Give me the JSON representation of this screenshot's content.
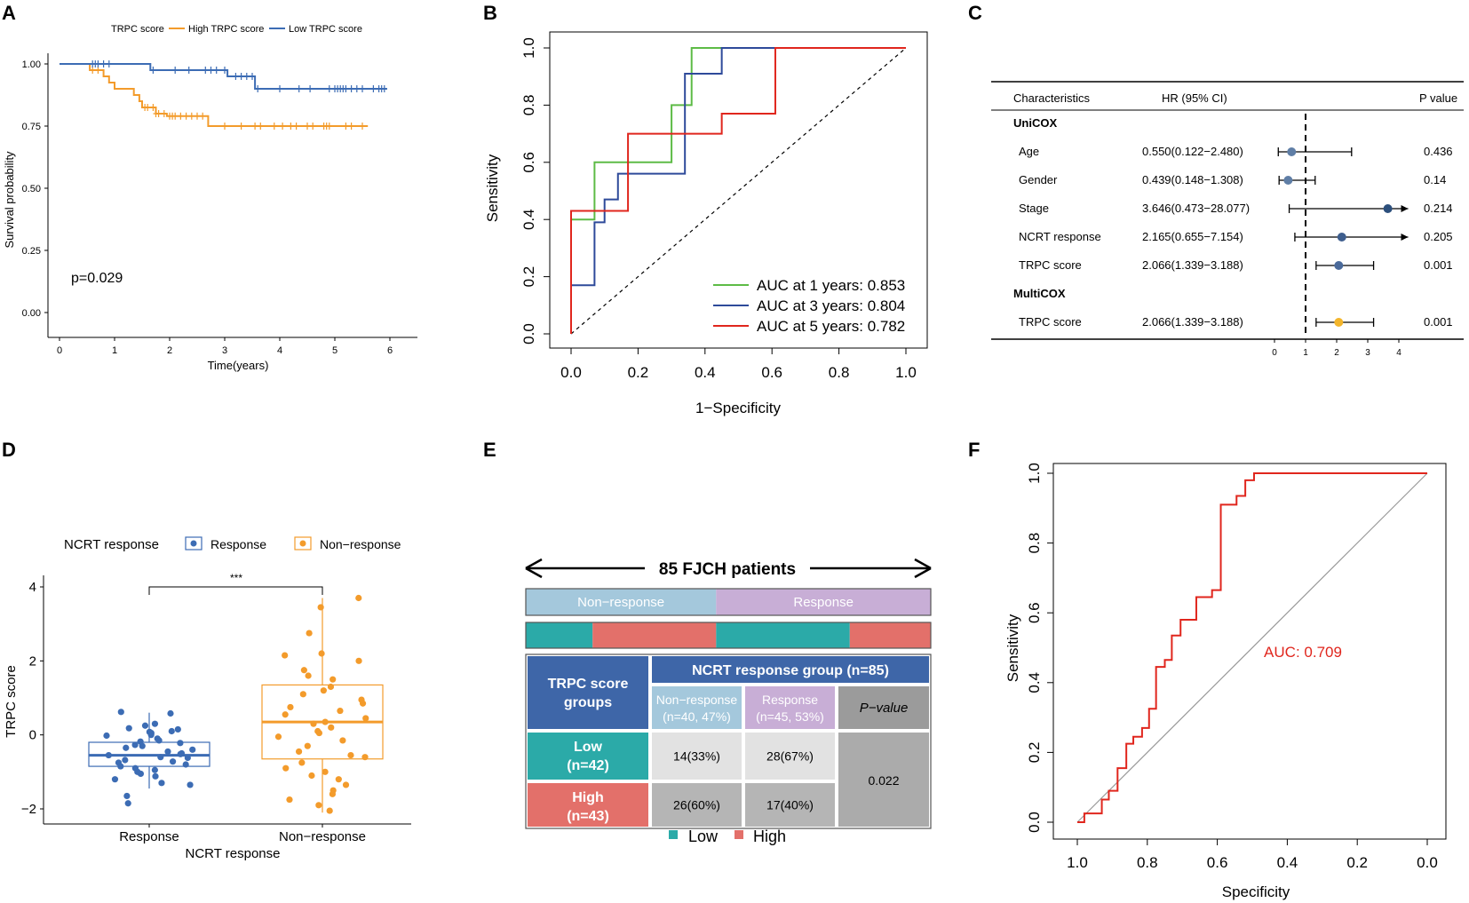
{
  "panels": {
    "a": {
      "label": "A",
      "chart_data": {
        "type": "line",
        "subtype": "kaplan-meier",
        "xlabel": "Time(years)",
        "ylabel": "Survival probability",
        "xlim": [
          0,
          6
        ],
        "ylim": [
          0,
          1
        ],
        "xticks": [
          "0",
          "1",
          "2",
          "3",
          "4",
          "5",
          "6"
        ],
        "yticks": [
          "0.00",
          "0.25",
          "0.50",
          "0.75",
          "1.00"
        ],
        "legend_title": "TRPC score",
        "annotation": "p=0.029",
        "series": [
          {
            "name": "High TRPC score",
            "color": "#F39B2B",
            "steps": [
              [
                0,
                1
              ],
              [
                0.55,
                0.975
              ],
              [
                0.8,
                0.95
              ],
              [
                0.9,
                0.925
              ],
              [
                1.0,
                0.9
              ],
              [
                1.35,
                0.875
              ],
              [
                1.45,
                0.85
              ],
              [
                1.5,
                0.825
              ],
              [
                1.75,
                0.8
              ],
              [
                1.95,
                0.79
              ],
              [
                2.7,
                0.75
              ],
              [
                5.6,
                0.75
              ]
            ],
            "censor": [
              0.6,
              0.7,
              1.55,
              1.6,
              1.7,
              1.75,
              1.8,
              1.9,
              2.0,
              2.05,
              2.1,
              2.2,
              2.3,
              2.4,
              2.5,
              2.6,
              3.0,
              3.3,
              3.55,
              3.65,
              3.9,
              4.05,
              4.2,
              4.3,
              4.5,
              4.6,
              4.8,
              4.85,
              4.9,
              5.2,
              5.3,
              5.5
            ]
          },
          {
            "name": "Low TRPC score",
            "color": "#3C6CB4",
            "steps": [
              [
                0,
                1
              ],
              [
                1.65,
                0.975
              ],
              [
                3.05,
                0.95
              ],
              [
                3.55,
                0.9
              ],
              [
                5.95,
                0.9
              ]
            ],
            "censor": [
              0.6,
              0.65,
              0.7,
              0.8,
              0.9,
              1.7,
              2.1,
              2.35,
              2.65,
              2.75,
              2.85,
              3.0,
              3.2,
              3.3,
              3.4,
              3.5,
              3.6,
              4.0,
              4.35,
              4.55,
              4.9,
              5.0,
              5.05,
              5.1,
              5.15,
              5.2,
              5.3,
              5.4,
              5.5,
              5.7,
              5.8,
              5.85,
              5.9
            ]
          }
        ]
      }
    },
    "b": {
      "label": "B",
      "chart_data": {
        "type": "line",
        "subtype": "roc",
        "xlabel": "1−Specificity",
        "ylabel": "Sensitivity",
        "xlim": [
          0,
          1
        ],
        "ylim": [
          0,
          1
        ],
        "xticks": [
          "0.0",
          "0.2",
          "0.4",
          "0.6",
          "0.8",
          "1.0"
        ],
        "yticks": [
          "0.0",
          "0.2",
          "0.4",
          "0.6",
          "0.8",
          "1.0"
        ],
        "series": [
          {
            "name": "AUC at 1 years: 0.853",
            "color": "#5DBB46",
            "points": [
              [
                0,
                0
              ],
              [
                0,
                0.4
              ],
              [
                0.07,
                0.4
              ],
              [
                0.07,
                0.6
              ],
              [
                0.3,
                0.6
              ],
              [
                0.3,
                0.8
              ],
              [
                0.36,
                0.8
              ],
              [
                0.36,
                1.0
              ],
              [
                1.0,
                1.0
              ]
            ]
          },
          {
            "name": "AUC at 3 years: 0.804",
            "color": "#2E4A9A",
            "points": [
              [
                0,
                0
              ],
              [
                0,
                0.17
              ],
              [
                0.07,
                0.17
              ],
              [
                0.07,
                0.39
              ],
              [
                0.1,
                0.39
              ],
              [
                0.1,
                0.47
              ],
              [
                0.14,
                0.47
              ],
              [
                0.14,
                0.56
              ],
              [
                0.34,
                0.56
              ],
              [
                0.34,
                0.91
              ],
              [
                0.45,
                0.91
              ],
              [
                0.45,
                1.0
              ],
              [
                1.0,
                1.0
              ]
            ]
          },
          {
            "name": "AUC at 5 years: 0.782",
            "color": "#E0261D",
            "points": [
              [
                0,
                0
              ],
              [
                0,
                0.43
              ],
              [
                0.17,
                0.43
              ],
              [
                0.17,
                0.7
              ],
              [
                0.45,
                0.7
              ],
              [
                0.45,
                0.77
              ],
              [
                0.61,
                0.77
              ],
              [
                0.61,
                1.0
              ],
              [
                1.0,
                1.0
              ]
            ]
          }
        ]
      }
    },
    "c": {
      "label": "C",
      "chart_data": {
        "type": "forest",
        "headers": [
          "Characteristics",
          "HR (95% CI)",
          "P value"
        ],
        "xticks": [
          "0",
          "1",
          "2",
          "3",
          "4"
        ],
        "reference": 1,
        "groups": [
          {
            "name": "UniCOX",
            "rows": [
              {
                "name": "Age",
                "hr_text": "0.550(0.122−2.480)",
                "p": "0.436",
                "hr": 0.55,
                "lo": 0.122,
                "hi": 2.48,
                "color": "#5F7EA6"
              },
              {
                "name": "Gender",
                "hr_text": "0.439(0.148−1.308)",
                "p": "0.14",
                "hr": 0.439,
                "lo": 0.148,
                "hi": 1.308,
                "color": "#5F7EA6"
              },
              {
                "name": "Stage",
                "hr_text": "3.646(0.473−28.077)",
                "p": "0.214",
                "hr": 3.646,
                "lo": 0.473,
                "hi": 4.3,
                "arrow": true,
                "color": "#2C4F7C"
              },
              {
                "name": "NCRT response",
                "hr_text": "2.165(0.655−7.154)",
                "p": "0.205",
                "hr": 2.165,
                "lo": 0.655,
                "hi": 4.3,
                "arrow": true,
                "color": "#3E5E8E"
              },
              {
                "name": "TRPC score",
                "hr_text": "2.066(1.339−3.188)",
                "p": "0.001",
                "hr": 2.066,
                "lo": 1.339,
                "hi": 3.188,
                "color": "#4A6A9A"
              }
            ]
          },
          {
            "name": "MultiCOX",
            "rows": [
              {
                "name": "TRPC score",
                "hr_text": "2.066(1.339−3.188)",
                "p": "0.001",
                "hr": 2.066,
                "lo": 1.339,
                "hi": 3.188,
                "color": "#F3B52B"
              }
            ]
          }
        ]
      }
    },
    "d": {
      "label": "D",
      "chart_data": {
        "type": "boxplot",
        "xlabel": "NCRT response",
        "ylabel": "TRPC score",
        "ylim": [
          -2.4,
          4.4
        ],
        "yticks": [
          "−2",
          "0",
          "2",
          "4"
        ],
        "categories": [
          "Response",
          "Non−response"
        ],
        "legend_title": "NCRT response",
        "significance": "***",
        "series": [
          {
            "name": "Response",
            "color": "#3C6CB4",
            "q1": -0.85,
            "median": -0.55,
            "q3": -0.2,
            "whisker_low": -1.45,
            "whisker_high": 0.6,
            "points": [
              0.62,
              0.58,
              0.3,
              0.25,
              0.18,
              0.15,
              0.1,
              0.08,
              0.05,
              0.0,
              -0.02,
              -0.1,
              -0.15,
              -0.18,
              -0.22,
              -0.27,
              -0.3,
              -0.35,
              -0.4,
              -0.45,
              -0.5,
              -0.52,
              -0.55,
              -0.6,
              -0.62,
              -0.68,
              -0.72,
              -0.75,
              -0.8,
              -0.85,
              -0.9,
              -0.95,
              -1.0,
              -1.05,
              -1.12,
              -1.2,
              -1.3,
              -1.35,
              -1.65,
              -1.85
            ]
          },
          {
            "name": "Non−response",
            "color": "#F39B2B",
            "q1": -0.65,
            "median": 0.35,
            "q3": 1.35,
            "whisker_low": -2.1,
            "whisker_high": 3.7,
            "points": [
              3.7,
              3.45,
              2.75,
              2.2,
              2.15,
              2.0,
              1.75,
              1.6,
              1.5,
              1.3,
              1.2,
              1.1,
              0.95,
              0.85,
              0.75,
              0.65,
              0.55,
              0.45,
              0.35,
              0.3,
              0.2,
              0.1,
              0.05,
              -0.05,
              -0.15,
              -0.3,
              -0.45,
              -0.55,
              -0.6,
              -0.75,
              -0.9,
              -1.0,
              -1.1,
              -1.2,
              -1.35,
              -1.5,
              -1.6,
              -1.75,
              -1.9,
              -2.05
            ]
          }
        ]
      }
    },
    "e": {
      "label": "E",
      "title": "85 FJCH patients",
      "bar_top": [
        "Non−response",
        "Response"
      ],
      "bar_top_fractions": [
        0.47,
        0.53
      ],
      "bar_bottom_fractions": [
        0.165,
        0.305,
        0.33,
        0.2
      ],
      "table": {
        "row_header": "TRPC score\ngroups",
        "col_header": "NCRT response group (n=85)",
        "sub_headers": [
          "Non−response\n(n=40, 47%)",
          "Response\n(n=45, 53%)",
          "P−value"
        ],
        "rows": [
          {
            "label": "Low\n(n=42)",
            "cells": [
              "14(33%)",
              "28(67%)"
            ]
          },
          {
            "label": "High\n(n=43)",
            "cells": [
              "26(60%)",
              "17(40%)"
            ]
          }
        ],
        "p_value": "0.022"
      },
      "legend": [
        "Low",
        "High"
      ],
      "colors": {
        "low": "#2BAAA8",
        "high": "#E3706A",
        "nonresp": "#A4C8DC",
        "resp": "#C8AED6",
        "header": "#3E66A8"
      }
    },
    "f": {
      "label": "F",
      "chart_data": {
        "type": "line",
        "subtype": "roc",
        "xlabel": "Specificity",
        "ylabel": "Sensitivity",
        "xlim": [
          1,
          0
        ],
        "ylim": [
          0,
          1
        ],
        "xticks": [
          "1.0",
          "0.8",
          "0.6",
          "0.4",
          "0.2",
          "0.0"
        ],
        "yticks": [
          "0.0",
          "0.2",
          "0.4",
          "0.6",
          "0.8",
          "1.0"
        ],
        "annotation": "AUC: 0.709",
        "series": [
          {
            "name": "ROC",
            "color": "#E0261D",
            "points": [
              [
                1.0,
                0.0
              ],
              [
                0.98,
                0.0
              ],
              [
                0.98,
                0.025
              ],
              [
                0.93,
                0.025
              ],
              [
                0.93,
                0.065
              ],
              [
                0.91,
                0.065
              ],
              [
                0.91,
                0.09
              ],
              [
                0.885,
                0.09
              ],
              [
                0.885,
                0.155
              ],
              [
                0.86,
                0.155
              ],
              [
                0.86,
                0.225
              ],
              [
                0.84,
                0.225
              ],
              [
                0.84,
                0.245
              ],
              [
                0.815,
                0.245
              ],
              [
                0.815,
                0.27
              ],
              [
                0.795,
                0.27
              ],
              [
                0.795,
                0.325
              ],
              [
                0.775,
                0.325
              ],
              [
                0.775,
                0.445
              ],
              [
                0.75,
                0.445
              ],
              [
                0.75,
                0.465
              ],
              [
                0.73,
                0.465
              ],
              [
                0.73,
                0.535
              ],
              [
                0.705,
                0.535
              ],
              [
                0.705,
                0.58
              ],
              [
                0.66,
                0.58
              ],
              [
                0.66,
                0.645
              ],
              [
                0.615,
                0.645
              ],
              [
                0.615,
                0.665
              ],
              [
                0.59,
                0.665
              ],
              [
                0.59,
                0.91
              ],
              [
                0.545,
                0.91
              ],
              [
                0.545,
                0.935
              ],
              [
                0.52,
                0.935
              ],
              [
                0.52,
                0.98
              ],
              [
                0.495,
                0.98
              ],
              [
                0.495,
                1.0
              ],
              [
                0.0,
                1.0
              ]
            ]
          }
        ]
      }
    }
  }
}
